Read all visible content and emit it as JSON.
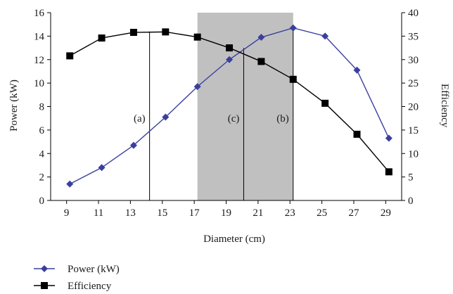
{
  "chart_data": {
    "type": "line",
    "x": [
      9.2,
      11.2,
      13.2,
      15.2,
      17.2,
      19.2,
      21.2,
      23.2,
      25.2,
      27.2,
      29.2
    ],
    "series": [
      {
        "name": "Power (kW)",
        "axis": "left",
        "color": "#3a3f9e",
        "marker": "diamond",
        "values": [
          1.4,
          2.8,
          4.7,
          7.1,
          9.7,
          12.0,
          13.9,
          14.7,
          14.0,
          11.1,
          5.3
        ]
      },
      {
        "name": "Efficiency",
        "axis": "right",
        "color": "#000000",
        "marker": "square",
        "values": [
          30.8,
          34.6,
          35.8,
          35.9,
          34.8,
          32.5,
          29.6,
          25.8,
          20.7,
          14.1,
          6.1
        ]
      }
    ],
    "xlabel": "Diameter (cm)",
    "ylabel_left": "Power (kW)",
    "ylabel_right": "Efficiency",
    "xlim": [
      8,
      30
    ],
    "ylim_left": [
      0,
      16
    ],
    "ylim_right": [
      0,
      40
    ],
    "xticks": [
      9,
      11,
      13,
      15,
      17,
      19,
      21,
      23,
      25,
      27,
      29
    ],
    "yticks_left": [
      0,
      2,
      4,
      6,
      8,
      10,
      12,
      14,
      16
    ],
    "yticks_right": [
      0,
      5,
      10,
      15,
      20,
      25,
      30,
      35,
      40
    ],
    "shaded_region": {
      "x_start": 17.2,
      "x_end": 23.2,
      "color": "#c0c0c0"
    },
    "vertical_lines": [
      {
        "label": "(a)",
        "x": 14.2,
        "y_top_left": 14.4,
        "label_y": 7
      },
      {
        "label": "(c)",
        "x": 20.1,
        "y_top_left": 13.0,
        "label_y": 7
      },
      {
        "label": "(b)",
        "x": 23.2,
        "y_top_left": 14.7,
        "label_y": 7
      }
    ],
    "grid": false,
    "legend_position": "bottom-left"
  }
}
